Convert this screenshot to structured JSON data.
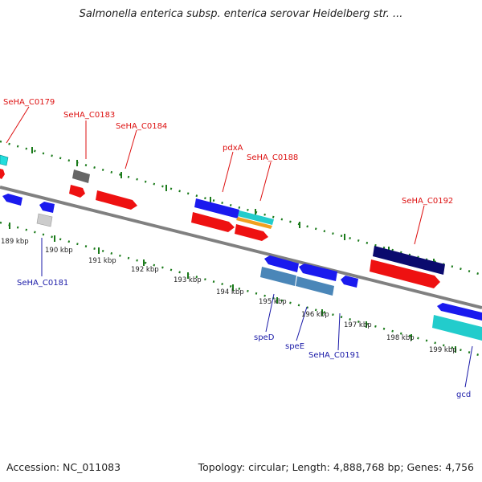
{
  "title": "Salmonella enterica subsp. enterica serovar Heidelberg str. ...",
  "footer": {
    "accession": "Accession: NC_011083",
    "summary": "Topology: circular; Length: 4,888,768 bp; Genes: 4,756"
  },
  "colors": {
    "red": "#ee1111",
    "blue": "#1a1aee",
    "navy": "#0a0a6e",
    "cyan": "#22cccc",
    "steel": "#4a86b8",
    "orange": "#f0a020",
    "gray": "#666666",
    "lightgray": "#cccccc",
    "tick": "#1a7a1a",
    "backbone": "#808080"
  },
  "kbp_labels": [
    "189 kbp",
    "190 kbp",
    "191 kbp",
    "192 kbp",
    "193 kbp",
    "194 kbp",
    "195 kbp",
    "196 kbp",
    "197 kbp",
    "198 kbp",
    "199 kbp"
  ],
  "gene_labels_top": [
    "SeHA_C0179",
    "SeHA_C0183",
    "SeHA_C0184",
    "pdxA",
    "SeHA_C0188",
    "SeHA_C0192"
  ],
  "gene_labels_bottom": [
    "SeHA_C0181",
    "speD",
    "speE",
    "SeHA_C0191",
    "gcd"
  ]
}
